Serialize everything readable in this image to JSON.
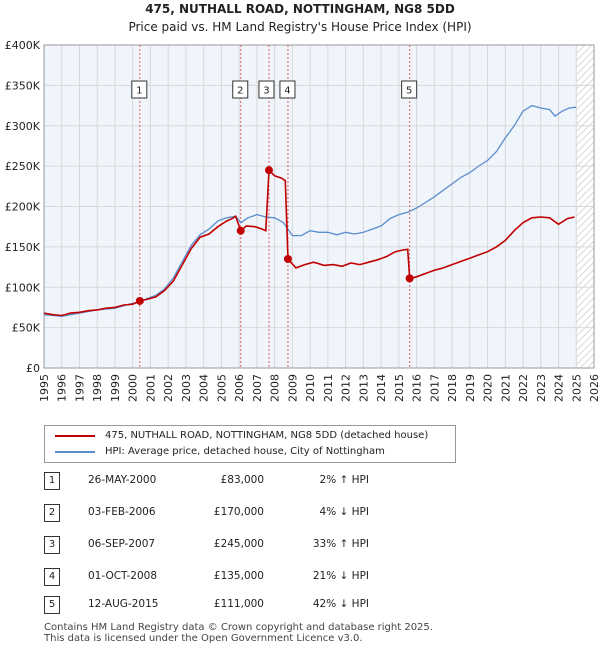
{
  "title": "475, NUTHALL ROAD, NOTTINGHAM, NG8 5DD",
  "subtitle": "Price paid vs. HM Land Registry's House Price Index (HPI)",
  "colors": {
    "price": "#c00000",
    "hpi": "#5b8ecf",
    "vline": "#e06060",
    "grid": "#d8d8d8",
    "bg": "#f0f4fb",
    "hatch": "#cccccc"
  },
  "chart_data": {
    "type": "line",
    "title": "475, NUTHALL ROAD, NOTTINGHAM, NG8 5DD",
    "subtitle": "Price paid vs. HM Land Registry's House Price Index (HPI)",
    "xlim": [
      1995,
      2026
    ],
    "ylim": [
      0,
      400000
    ],
    "x_ticks": [
      1995,
      1996,
      1997,
      1998,
      1999,
      2000,
      2001,
      2002,
      2003,
      2004,
      2005,
      2006,
      2007,
      2008,
      2009,
      2010,
      2011,
      2012,
      2013,
      2014,
      2015,
      2016,
      2017,
      2018,
      2019,
      2020,
      2021,
      2022,
      2023,
      2024,
      2025,
      2026
    ],
    "y_ticks": [
      0,
      50000,
      100000,
      150000,
      200000,
      250000,
      300000,
      350000,
      400000
    ],
    "y_tick_labels": [
      "£0",
      "£50K",
      "£100K",
      "£150K",
      "£200K",
      "£250K",
      "£300K",
      "£350K",
      "£400K"
    ],
    "grid": true,
    "future_hatch_from": 2025.0,
    "series": [
      {
        "name": "475, NUTHALL ROAD, NOTTINGHAM, NG8 5DD (detached house)",
        "points": [
          [
            1995.0,
            68000
          ],
          [
            1995.5,
            66000
          ],
          [
            1996.0,
            65000
          ],
          [
            1996.5,
            68000
          ],
          [
            1997.0,
            69000
          ],
          [
            1997.5,
            71000
          ],
          [
            1998.0,
            72000
          ],
          [
            1998.5,
            74000
          ],
          [
            1999.0,
            75000
          ],
          [
            1999.5,
            78000
          ],
          [
            2000.0,
            79000
          ],
          [
            2000.4,
            83000
          ],
          [
            2000.8,
            85000
          ],
          [
            2001.3,
            88000
          ],
          [
            2001.8,
            96000
          ],
          [
            2002.3,
            108000
          ],
          [
            2002.8,
            128000
          ],
          [
            2003.3,
            148000
          ],
          [
            2003.8,
            162000
          ],
          [
            2004.3,
            166000
          ],
          [
            2004.8,
            175000
          ],
          [
            2005.3,
            182000
          ],
          [
            2005.6,
            185000
          ],
          [
            2005.8,
            188000
          ],
          [
            2006.09,
            170000
          ],
          [
            2006.4,
            176000
          ],
          [
            2006.9,
            175000
          ],
          [
            2007.3,
            172000
          ],
          [
            2007.5,
            170000
          ],
          [
            2007.68,
            245000
          ],
          [
            2008.0,
            238000
          ],
          [
            2008.4,
            235000
          ],
          [
            2008.6,
            232000
          ],
          [
            2008.75,
            135000
          ],
          [
            2009.2,
            124000
          ],
          [
            2009.7,
            128000
          ],
          [
            2010.2,
            131000
          ],
          [
            2010.8,
            127000
          ],
          [
            2011.3,
            128000
          ],
          [
            2011.8,
            126000
          ],
          [
            2012.3,
            130000
          ],
          [
            2012.8,
            128000
          ],
          [
            2013.3,
            131000
          ],
          [
            2013.8,
            134000
          ],
          [
            2014.3,
            138000
          ],
          [
            2014.8,
            144000
          ],
          [
            2015.2,
            146000
          ],
          [
            2015.5,
            147000
          ],
          [
            2015.61,
            111000
          ],
          [
            2016.0,
            113000
          ],
          [
            2016.5,
            117000
          ],
          [
            2017.0,
            121000
          ],
          [
            2017.5,
            124000
          ],
          [
            2018.0,
            128000
          ],
          [
            2018.5,
            132000
          ],
          [
            2019.0,
            136000
          ],
          [
            2019.5,
            140000
          ],
          [
            2020.0,
            144000
          ],
          [
            2020.5,
            150000
          ],
          [
            2021.0,
            158000
          ],
          [
            2021.5,
            170000
          ],
          [
            2022.0,
            180000
          ],
          [
            2022.5,
            186000
          ],
          [
            2023.0,
            187000
          ],
          [
            2023.5,
            186000
          ],
          [
            2024.0,
            178000
          ],
          [
            2024.5,
            185000
          ],
          [
            2024.9,
            187000
          ]
        ]
      },
      {
        "name": "HPI: Average price, detached house, City of Nottingham",
        "points": [
          [
            1995.0,
            66000
          ],
          [
            1995.5,
            65000
          ],
          [
            1996.0,
            64000
          ],
          [
            1996.5,
            66000
          ],
          [
            1997.0,
            68000
          ],
          [
            1997.5,
            70000
          ],
          [
            1998.0,
            72000
          ],
          [
            1998.5,
            73000
          ],
          [
            1999.0,
            74000
          ],
          [
            1999.5,
            77000
          ],
          [
            2000.0,
            80000
          ],
          [
            2000.4,
            82000
          ],
          [
            2000.8,
            86000
          ],
          [
            2001.3,
            90000
          ],
          [
            2001.8,
            98000
          ],
          [
            2002.3,
            112000
          ],
          [
            2002.8,
            132000
          ],
          [
            2003.3,
            152000
          ],
          [
            2003.8,
            165000
          ],
          [
            2004.3,
            172000
          ],
          [
            2004.8,
            182000
          ],
          [
            2005.3,
            186000
          ],
          [
            2005.8,
            188000
          ],
          [
            2006.1,
            180000
          ],
          [
            2006.5,
            186000
          ],
          [
            2007.0,
            190000
          ],
          [
            2007.5,
            187000
          ],
          [
            2008.0,
            186000
          ],
          [
            2008.5,
            180000
          ],
          [
            2009.0,
            164000
          ],
          [
            2009.5,
            164000
          ],
          [
            2010.0,
            170000
          ],
          [
            2010.5,
            168000
          ],
          [
            2011.0,
            168000
          ],
          [
            2011.5,
            165000
          ],
          [
            2012.0,
            168000
          ],
          [
            2012.5,
            166000
          ],
          [
            2013.0,
            168000
          ],
          [
            2013.5,
            172000
          ],
          [
            2014.0,
            176000
          ],
          [
            2014.5,
            185000
          ],
          [
            2015.0,
            190000
          ],
          [
            2015.5,
            193000
          ],
          [
            2016.0,
            198000
          ],
          [
            2016.5,
            205000
          ],
          [
            2017.0,
            212000
          ],
          [
            2017.5,
            220000
          ],
          [
            2018.0,
            228000
          ],
          [
            2018.5,
            236000
          ],
          [
            2019.0,
            242000
          ],
          [
            2019.5,
            250000
          ],
          [
            2020.0,
            257000
          ],
          [
            2020.5,
            268000
          ],
          [
            2021.0,
            285000
          ],
          [
            2021.5,
            300000
          ],
          [
            2022.0,
            318000
          ],
          [
            2022.5,
            325000
          ],
          [
            2023.0,
            322000
          ],
          [
            2023.5,
            320000
          ],
          [
            2023.8,
            312000
          ],
          [
            2024.2,
            318000
          ],
          [
            2024.6,
            322000
          ],
          [
            2025.0,
            323000
          ]
        ]
      }
    ],
    "sales": [
      {
        "n": "1",
        "x": 2000.4,
        "y": 83000
      },
      {
        "n": "2",
        "x": 2006.09,
        "y": 170000
      },
      {
        "n": "3",
        "x": 2007.68,
        "y": 245000
      },
      {
        "n": "4",
        "x": 2008.75,
        "y": 135000
      },
      {
        "n": "5",
        "x": 2015.61,
        "y": 111000
      }
    ]
  },
  "legend": {
    "price_label": "475, NUTHALL ROAD, NOTTINGHAM, NG8 5DD (detached house)",
    "hpi_label": "HPI: Average price, detached house, City of Nottingham"
  },
  "transactions": [
    {
      "n": "1",
      "date": "26-MAY-2000",
      "price": "£83,000",
      "hpi": "2% ↑ HPI"
    },
    {
      "n": "2",
      "date": "03-FEB-2006",
      "price": "£170,000",
      "hpi": "4% ↓ HPI"
    },
    {
      "n": "3",
      "date": "06-SEP-2007",
      "price": "£245,000",
      "hpi": "33% ↑ HPI"
    },
    {
      "n": "4",
      "date": "01-OCT-2008",
      "price": "£135,000",
      "hpi": "21% ↓ HPI"
    },
    {
      "n": "5",
      "date": "12-AUG-2015",
      "price": "£111,000",
      "hpi": "42% ↓ HPI"
    }
  ],
  "footer": {
    "line1": "Contains HM Land Registry data © Crown copyright and database right 2025.",
    "line2": "This data is licensed under the Open Government Licence v3.0."
  }
}
